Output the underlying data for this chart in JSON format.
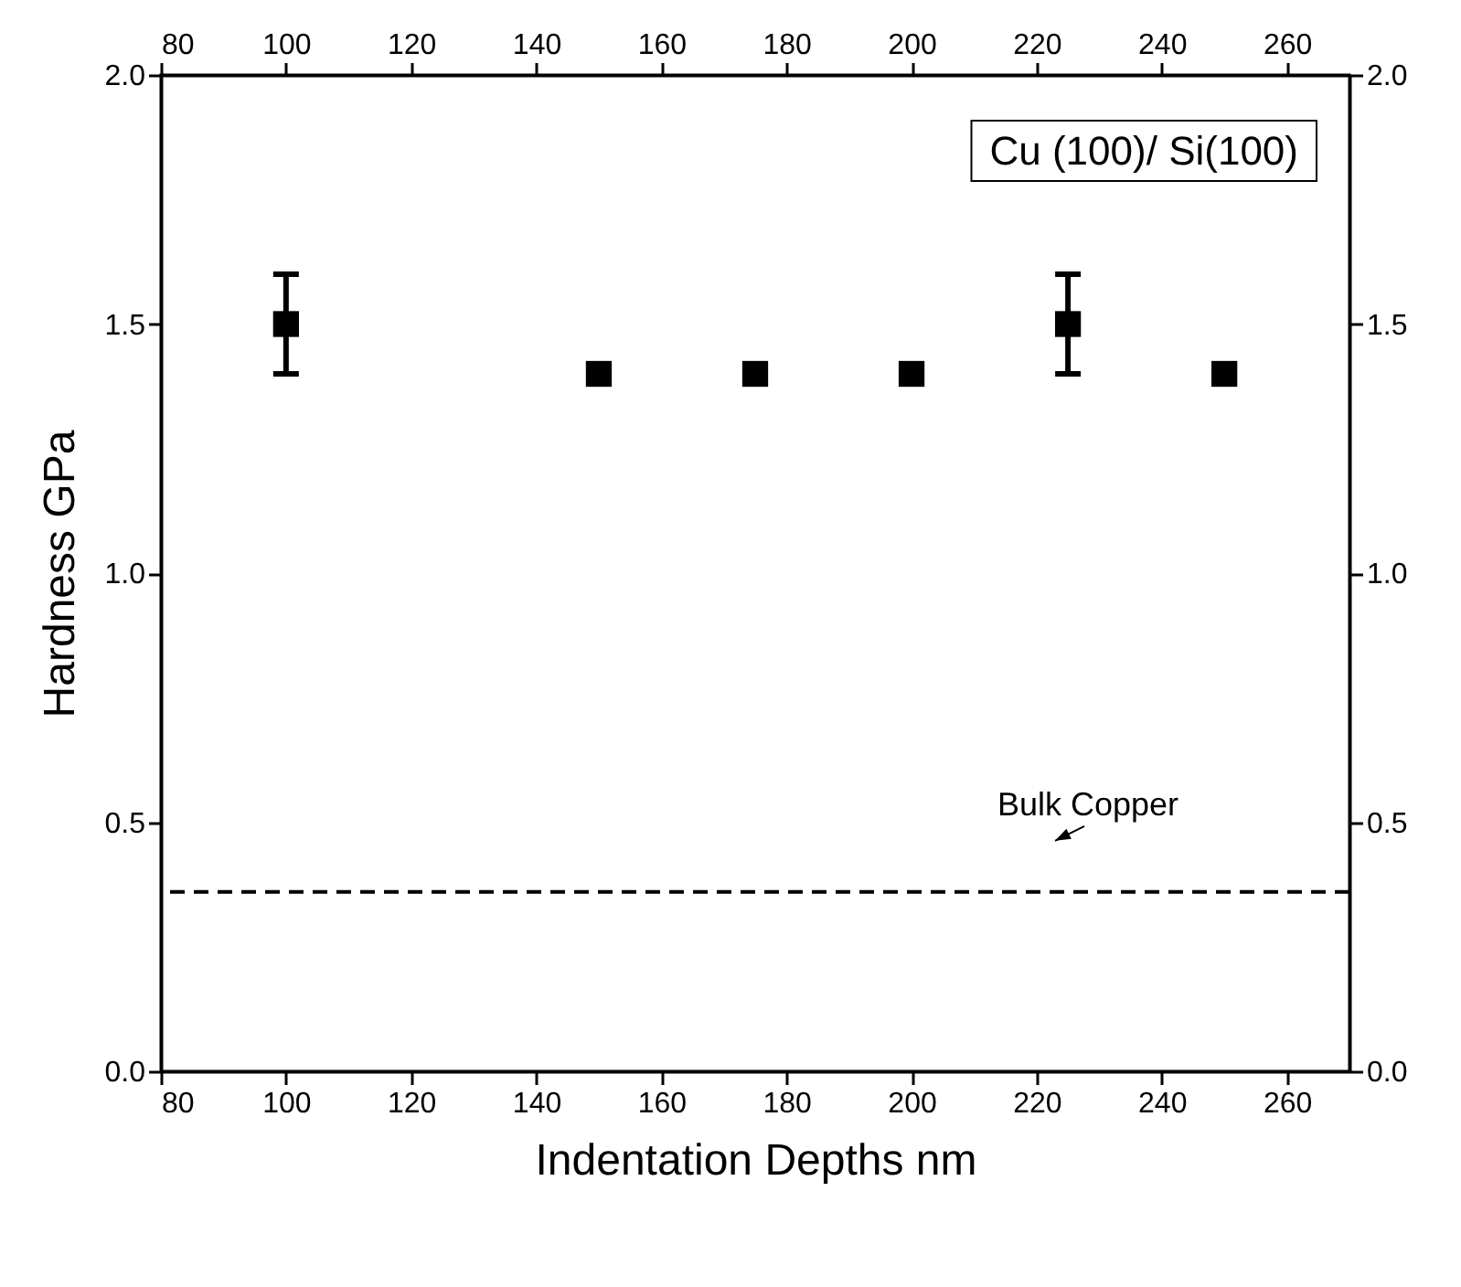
{
  "chart_data": {
    "type": "scatter",
    "xlabel": "Indentation Depths nm",
    "ylabel": "Hardness GPa",
    "x": [
      100,
      150,
      175,
      200,
      225,
      250
    ],
    "series": [
      {
        "color": "#000000",
        "values": [
          1.5,
          1.4,
          1.4,
          1.4,
          1.5,
          1.4
        ],
        "errors": [
          0.1,
          null,
          null,
          null,
          0.1,
          null
        ]
      }
    ],
    "marker": "square",
    "grid": false,
    "xlim": [
      80,
      270
    ],
    "xticks": [
      80,
      100,
      120,
      140,
      160,
      180,
      200,
      220,
      240,
      260
    ],
    "x2lim": [
      80,
      270
    ],
    "x2ticks": [
      80,
      100,
      120,
      140,
      160,
      180,
      200,
      220,
      240,
      260
    ],
    "ylim": [
      0,
      2
    ],
    "yticks": [
      {
        "value": 0,
        "label": "0.0"
      },
      {
        "value": 0.5,
        "label": "0.5"
      },
      {
        "value": 1,
        "label": "1.0"
      },
      {
        "value": 1.5,
        "label": "1.5"
      },
      {
        "value": 2,
        "label": "2.0"
      }
    ],
    "y2lim": [
      0,
      2
    ],
    "y2ticks": [
      {
        "value": 0,
        "label": "0.0"
      },
      {
        "value": 0.5,
        "label": "0.5"
      },
      {
        "value": 1,
        "label": "1.0"
      },
      {
        "value": 1.5,
        "label": "1.5"
      },
      {
        "value": 2,
        "label": "2.0"
      }
    ],
    "ref_lines": [
      {
        "axis": "y",
        "value": 0.36,
        "color": "#000000",
        "line_style": "dashed",
        "label": "Bulk Copper"
      }
    ],
    "annotations": [
      "Cu (100)/ Si(100)"
    ]
  }
}
